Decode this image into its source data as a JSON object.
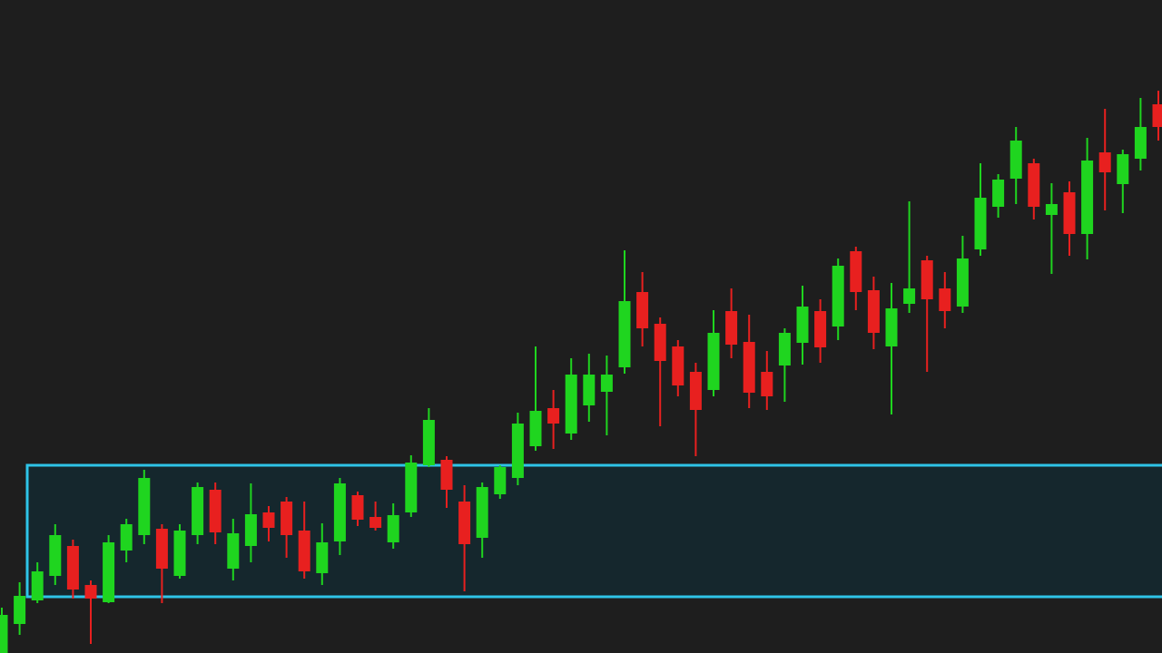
{
  "chart_data": {
    "type": "candlestick",
    "ylim": [
      0,
      720
    ],
    "up_color": "#1fd51f",
    "down_color": "#e8201f",
    "zone": {
      "low": 62,
      "high": 207,
      "color": "#2ec4e8",
      "fill": "#15272d"
    },
    "open": [
      0,
      32,
      58,
      85,
      118,
      75,
      56,
      113,
      130,
      137,
      85,
      130,
      180,
      93,
      118,
      155,
      167,
      135,
      88,
      123,
      174,
      150,
      122,
      155,
      207,
      213,
      167,
      127,
      175,
      193,
      228,
      270,
      242,
      273,
      288,
      315,
      398,
      363,
      338,
      310,
      290,
      377,
      343,
      310,
      317,
      342,
      377,
      360,
      443,
      400,
      338,
      385,
      433,
      402,
      382,
      445,
      492,
      523,
      540,
      483,
      508,
      462,
      552,
      517,
      545,
      605
    ],
    "high": [
      50,
      78,
      100,
      142,
      125,
      80,
      130,
      148,
      202,
      142,
      142,
      188,
      188,
      148,
      187,
      162,
      172,
      167,
      143,
      193,
      178,
      167,
      165,
      218,
      270,
      217,
      185,
      188,
      207,
      265,
      338,
      290,
      325,
      330,
      328,
      444,
      420,
      370,
      345,
      320,
      378,
      402,
      373,
      333,
      358,
      405,
      390,
      435,
      448,
      415,
      408,
      498,
      438,
      420,
      460,
      540,
      528,
      580,
      545,
      518,
      520,
      568,
      600,
      555,
      612,
      620
    ],
    "low": [
      0,
      20,
      55,
      75,
      60,
      10,
      55,
      100,
      120,
      55,
      82,
      120,
      120,
      80,
      100,
      123,
      105,
      82,
      75,
      108,
      140,
      135,
      115,
      150,
      205,
      160,
      68,
      105,
      170,
      185,
      223,
      225,
      235,
      255,
      240,
      308,
      338,
      250,
      283,
      217,
      283,
      325,
      270,
      268,
      277,
      318,
      320,
      345,
      378,
      335,
      263,
      375,
      310,
      358,
      375,
      438,
      480,
      495,
      478,
      418,
      438,
      434,
      488,
      485,
      532,
      565
    ],
    "close": [
      42,
      63,
      90,
      130,
      70,
      60,
      122,
      142,
      193,
      93,
      135,
      183,
      133,
      132,
      153,
      138,
      130,
      90,
      122,
      187,
      147,
      138,
      152,
      210,
      257,
      180,
      120,
      183,
      205,
      253,
      267,
      253,
      307,
      307,
      307,
      388,
      358,
      322,
      295,
      268,
      353,
      340,
      287,
      283,
      353,
      382,
      337,
      427,
      398,
      353,
      380,
      402,
      390,
      377,
      435,
      502,
      522,
      565,
      492,
      495,
      462,
      543,
      530,
      550,
      580,
      580
    ]
  }
}
